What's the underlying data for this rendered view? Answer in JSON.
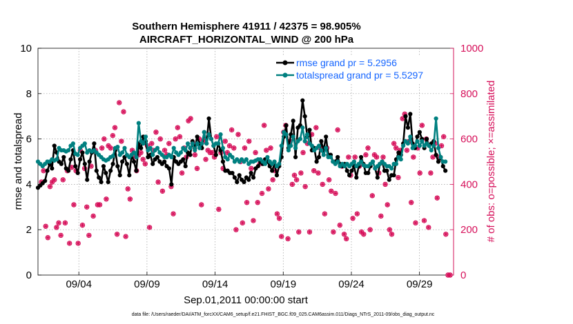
{
  "chart_data": {
    "type": "line",
    "title_line1": "Southern Hemisphere 41911 / 42375 = 98.905%",
    "title_line2": "AIRCRAFT_HORIZONTAL_WIND @ 200 hPa",
    "xlabel": "Sep.01,2011 00:00:00 start",
    "ylabel_left": "rmse and totalspread",
    "ylabel_right": "# of obs: o=possible; ×=assimilated",
    "footnote": "data file: /Users/raeder/DAI/ATM_forcXX/CAM6_setup/f.e21.FHIST_BGC.f09_025.CAM6assim.011/Diags_NTrS_2011-09/obs_diag_output.nc",
    "x_range": [
      1,
      31.5
    ],
    "x_ticks": [
      4,
      9,
      14,
      19,
      24,
      29
    ],
    "x_tick_labels": [
      "09/04",
      "09/09",
      "09/14",
      "09/19",
      "09/24",
      "09/29"
    ],
    "ylim_left": [
      0,
      10
    ],
    "y_ticks_left": [
      "0",
      "2",
      "4",
      "6",
      "8",
      "10"
    ],
    "ylim_right": [
      0,
      1000
    ],
    "y_ticks_right": [
      "0",
      "200",
      "400",
      "600",
      "800",
      "1000"
    ],
    "colors": {
      "rmse": "#000000",
      "spread": "#008080",
      "obs": "#d6105a",
      "legend_text": "#1565ff",
      "right_axis": "#d6105a"
    },
    "series": [
      {
        "name": "rmse grand pr = 5.2956",
        "values": [
          3.85,
          3.95,
          4.05,
          4.15,
          4.6,
          4.9,
          4.7,
          5.7,
          5.4,
          5.0,
          4.9,
          5.2,
          4.7,
          4.6,
          5.1,
          5.5,
          4.8,
          4.5,
          5.1,
          5.4,
          4.9,
          4.2,
          5.0,
          5.4,
          5.8,
          4.6,
          4.3,
          4.1,
          4.8,
          4.5,
          4.1,
          4.6,
          4.9,
          5.5,
          4.8,
          4.4,
          5.0,
          5.2,
          4.9,
          4.4,
          5.3,
          5.0,
          4.6,
          5.8,
          5.6,
          6.1,
          5.9,
          5.2,
          5.3,
          4.9,
          5.1,
          5.2,
          5.0,
          4.9,
          5.0,
          4.8,
          4.7,
          4.0,
          5.2,
          5.0,
          4.9,
          5.0,
          5.1,
          4.8,
          5.4,
          5.3,
          5.9,
          5.6,
          6.1,
          5.8,
          5.6,
          6.3,
          5.8,
          6.9,
          6.0,
          5.7,
          5.3,
          5.8,
          5.5,
          5.0,
          4.6,
          4.6,
          4.5,
          4.5,
          4.3,
          4.1,
          4.4,
          4.2,
          4.1,
          4.3,
          4.2,
          4.5,
          4.3,
          4.7,
          4.8,
          5.0,
          4.9,
          5.1,
          5.0,
          4.8,
          4.6,
          4.9,
          4.4,
          4.8,
          5.2,
          6.1,
          6.6,
          5.6,
          6.2,
          6.8,
          5.2,
          6.5,
          6.6,
          7.7,
          7.0,
          6.1,
          6.4,
          5.5,
          5.6,
          5.0,
          5.2,
          5.9,
          5.5,
          6.1,
          5.3,
          5.3,
          5.0,
          5.0,
          5.2,
          4.9,
          4.8,
          4.9,
          4.6,
          4.4,
          4.6,
          4.8,
          4.3,
          4.8,
          5.2,
          4.9,
          4.5,
          4.5,
          4.8,
          5.0,
          4.7,
          4.3,
          4.9,
          5.0,
          4.6,
          4.6,
          4.2,
          4.4,
          4.4,
          5.1,
          5.4,
          5.3,
          5.8,
          7.0,
          6.5,
          7.1,
          5.8,
          5.6,
          6.1,
          6.3,
          6.0,
          5.6,
          6.0,
          5.7,
          5.8,
          5.9,
          5.3,
          5.0,
          5.2,
          4.8,
          4.6
        ]
      },
      {
        "name": "totalspread grand pr = 5.5297",
        "values": [
          5.0,
          4.9,
          4.8,
          4.9,
          5.0,
          5.0,
          5.1,
          5.05,
          5.1,
          5.6,
          5.5,
          5.5,
          5.45,
          5.5,
          5.7,
          5.8,
          5.35,
          5.3,
          5.6,
          5.7,
          5.8,
          5.4,
          5.5,
          5.45,
          5.5,
          5.4,
          5.3,
          5.2,
          5.1,
          5.05,
          5.1,
          5.2,
          5.25,
          5.6,
          5.65,
          5.3,
          5.4,
          5.6,
          5.3,
          5.2,
          5.3,
          5.4,
          5.2,
          6.7,
          5.9,
          5.8,
          6.1,
          5.5,
          5.6,
          5.3,
          5.5,
          5.6,
          5.4,
          5.3,
          5.2,
          5.2,
          5.3,
          5.2,
          5.6,
          5.4,
          5.3,
          5.4,
          5.6,
          5.5,
          5.8,
          5.6,
          5.8,
          5.5,
          5.8,
          5.6,
          5.8,
          6.3,
          5.8,
          6.2,
          6.0,
          5.7,
          5.8,
          5.8,
          6.2,
          5.6,
          5.2,
          5.1,
          5.3,
          5.2,
          5.0,
          5.1,
          5.0,
          5.1,
          5.0,
          5.1,
          4.9,
          5.0,
          5.0,
          5.05,
          5.1,
          5.1,
          5.0,
          4.9,
          5.2,
          5.0,
          4.9,
          5.0,
          4.8,
          4.9,
          5.7,
          6.3,
          6.2,
          5.5,
          5.7,
          6.1,
          5.6,
          5.9,
          6.0,
          6.5,
          5.9,
          6.2,
          5.8,
          5.7,
          5.5,
          5.6,
          5.7,
          5.5,
          5.3,
          5.6,
          5.2,
          5.2,
          5.0,
          4.9,
          5.0,
          4.8,
          4.9,
          4.8,
          4.9,
          4.8,
          4.9,
          5.0,
          4.8,
          4.9,
          5.0,
          4.85,
          4.8,
          4.8,
          4.9,
          5.0,
          4.7,
          4.8,
          4.9,
          5.0,
          4.9,
          4.8,
          4.8,
          4.7,
          4.9,
          4.9,
          5.2,
          5.1,
          5.7,
          5.9,
          5.8,
          6.1,
          5.6,
          5.7,
          5.9,
          5.7,
          5.9,
          5.7,
          5.8,
          5.7,
          5.5,
          5.7,
          6.9,
          5.6,
          5.2,
          5.0,
          5.0
        ]
      }
    ],
    "obs_possible": [
      410,
      460,
      215,
      165,
      390,
      410,
      420,
      210,
      230,
      175,
      420,
      230,
      460,
      140,
      475,
      310,
      460,
      140,
      550,
      220,
      470,
      300,
      175,
      480,
      260,
      550,
      310,
      310,
      560,
      600,
      335,
      570,
      560,
      615,
      650,
      180,
      760,
      590,
      720,
      170,
      380,
      335,
      550,
      520,
      460,
      530,
      540,
      510,
      490,
      570,
      210,
      580,
      550,
      630,
      410,
      600,
      370,
      550,
      530,
      580,
      390,
      270,
      600,
      650,
      610,
      450,
      560,
      520,
      680,
      690,
      580,
      530,
      470,
      600,
      310,
      590,
      510,
      550,
      540,
      540,
      520,
      610,
      290,
      540,
      470,
      590,
      540,
      570,
      640,
      560,
      200,
      620,
      500,
      230,
      560,
      320,
      590,
      470,
      240,
      540,
      320,
      490,
      360,
      660,
      550,
      380,
      560,
      420,
      460,
      270,
      250,
      170,
      630,
      660,
      160,
      590,
      400,
      440,
      420,
      190,
      450,
      540,
      390,
      580,
      190,
      620,
      460,
      650,
      450,
      560,
      400,
      270,
      560,
      420,
      370,
      190,
      360,
      640,
      220,
      480,
      180,
      160,
      520,
      440,
      250,
      520,
      270,
      480,
      190,
      180,
      530,
      560,
      200,
      350,
      530,
      520,
      450,
      260,
      520,
      400,
      310,
      200,
      180,
      580,
      560,
      430,
      550,
      690,
      710,
      550,
      590,
      320,
      520,
      230,
      560,
      450,
      660,
      240,
      600,
      210,
      450,
      520,
      580,
      340,
      520,
      570,
      610,
      180,
      0,
      0
    ]
  },
  "legend": {
    "rmse_label": "rmse grand pr = 5.2956",
    "spread_label": "totalspread grand pr = 5.5297"
  }
}
